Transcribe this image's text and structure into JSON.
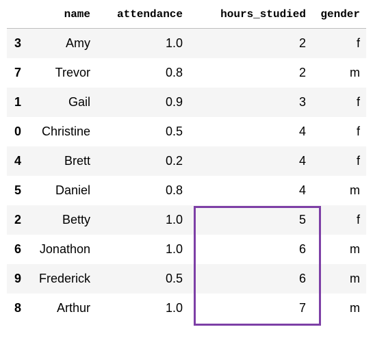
{
  "columns": {
    "index": "",
    "name": "name",
    "attendance": "attendance",
    "hours_studied": "hours_studied",
    "gender": "gender"
  },
  "rows": [
    {
      "index": "3",
      "name": "Amy",
      "attendance": "1.0",
      "hours_studied": "2",
      "gender": "f"
    },
    {
      "index": "7",
      "name": "Trevor",
      "attendance": "0.8",
      "hours_studied": "2",
      "gender": "m"
    },
    {
      "index": "1",
      "name": "Gail",
      "attendance": "0.9",
      "hours_studied": "3",
      "gender": "f"
    },
    {
      "index": "0",
      "name": "Christine",
      "attendance": "0.5",
      "hours_studied": "4",
      "gender": "f"
    },
    {
      "index": "4",
      "name": "Brett",
      "attendance": "0.2",
      "hours_studied": "4",
      "gender": "f"
    },
    {
      "index": "5",
      "name": "Daniel",
      "attendance": "0.8",
      "hours_studied": "4",
      "gender": "m"
    },
    {
      "index": "2",
      "name": "Betty",
      "attendance": "1.0",
      "hours_studied": "5",
      "gender": "f"
    },
    {
      "index": "6",
      "name": "Jonathon",
      "attendance": "1.0",
      "hours_studied": "6",
      "gender": "m"
    },
    {
      "index": "9",
      "name": "Frederick",
      "attendance": "0.5",
      "hours_studied": "6",
      "gender": "m"
    },
    {
      "index": "8",
      "name": "Arthur",
      "attendance": "1.0",
      "hours_studied": "7",
      "gender": "m"
    }
  ],
  "colors": {
    "highlight_border": "#7d3fa6",
    "striped_row": "#f5f5f5"
  }
}
